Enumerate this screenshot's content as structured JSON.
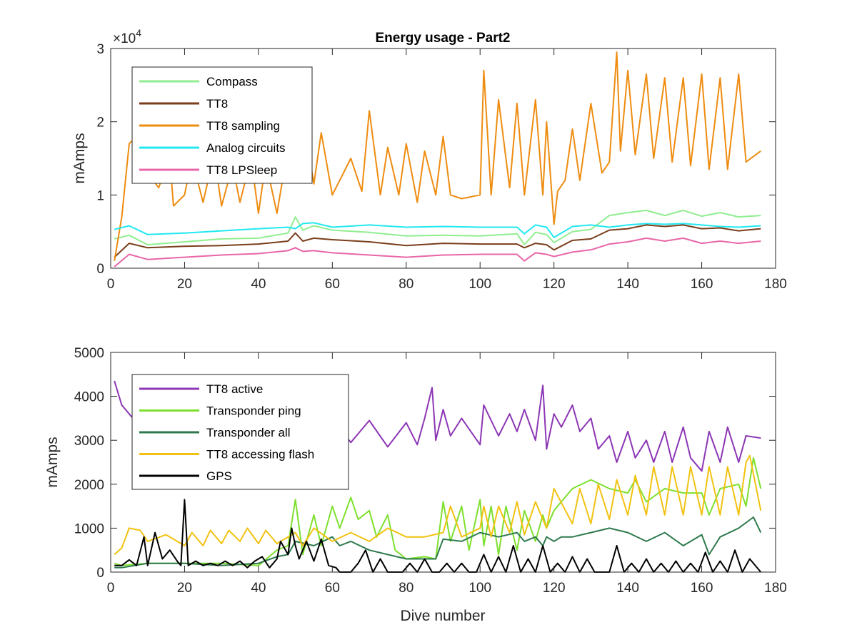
{
  "figure": {
    "title": "Energy usage - Part2"
  },
  "chart_data": [
    {
      "type": "line",
      "title": "Energy usage - Part2",
      "xlabel": "",
      "ylabel": "mAmps",
      "xlim": [
        0,
        180
      ],
      "ylim": [
        0,
        30000
      ],
      "x_ticks": [
        "0",
        "20",
        "40",
        "60",
        "80",
        "100",
        "120",
        "140",
        "160",
        "180"
      ],
      "y_ticks": [
        "0",
        "1",
        "2",
        "3"
      ],
      "y_exponent_label": "×10",
      "y_exponent_power": "4",
      "legend_position": "top-left",
      "grid": false,
      "series": [
        {
          "name": "Compass",
          "color": "#90EE90",
          "x": [
            1,
            5,
            10,
            20,
            30,
            40,
            48,
            50,
            52,
            55,
            60,
            70,
            80,
            90,
            100,
            110,
            112,
            115,
            118,
            120,
            125,
            130,
            135,
            140,
            145,
            150,
            155,
            160,
            165,
            170,
            176
          ],
          "y": [
            4000,
            4500,
            3200,
            3600,
            4000,
            4100,
            4800,
            7000,
            5200,
            5800,
            5200,
            4900,
            4400,
            4500,
            4400,
            4700,
            3200,
            4900,
            4600,
            3500,
            5000,
            5300,
            7200,
            7600,
            7900,
            7200,
            7900,
            7100,
            7600,
            7000,
            7200
          ]
        },
        {
          "name": "TT8",
          "color": "#7A3E1B",
          "x": [
            1,
            5,
            10,
            20,
            30,
            40,
            48,
            50,
            52,
            55,
            60,
            70,
            80,
            90,
            100,
            110,
            112,
            115,
            118,
            120,
            125,
            130,
            135,
            140,
            145,
            150,
            155,
            160,
            165,
            170,
            176
          ],
          "y": [
            1500,
            3400,
            2800,
            3000,
            3100,
            3300,
            3700,
            4800,
            3700,
            4100,
            3900,
            3600,
            3100,
            3400,
            3300,
            3300,
            2800,
            3400,
            3200,
            2500,
            3800,
            4000,
            5200,
            5400,
            5900,
            5700,
            5900,
            5400,
            5500,
            5100,
            5400
          ]
        },
        {
          "name": "TT8 sampling",
          "color": "#EE8C10",
          "x": [
            1,
            3,
            5,
            6,
            10,
            13,
            16,
            17,
            20,
            22,
            25,
            28,
            30,
            33,
            35,
            38,
            40,
            42,
            45,
            47,
            50,
            52,
            55,
            57,
            60,
            62,
            65,
            68,
            70,
            73,
            75,
            78,
            80,
            83,
            85,
            88,
            90,
            92,
            95,
            100,
            101,
            103,
            105,
            108,
            110,
            112,
            115,
            117,
            118,
            120,
            121,
            123,
            125,
            127,
            130,
            133,
            135,
            137,
            138,
            140,
            142,
            145,
            147,
            150,
            152,
            155,
            157,
            160,
            162,
            165,
            167,
            170,
            172,
            176
          ],
          "y": [
            1000,
            7000,
            17000,
            17500,
            13000,
            11000,
            15000,
            8500,
            10000,
            15000,
            9000,
            15500,
            8500,
            14000,
            9000,
            15000,
            7500,
            14500,
            7500,
            13500,
            12000,
            21000,
            11500,
            18500,
            10000,
            12000,
            15000,
            10500,
            21500,
            10000,
            16500,
            10000,
            17000,
            9000,
            16000,
            10000,
            18000,
            10000,
            9500,
            10000,
            27000,
            10000,
            23000,
            11000,
            22500,
            10000,
            23000,
            10000,
            20000,
            6000,
            10500,
            12000,
            19000,
            12000,
            22500,
            13000,
            14500,
            29500,
            16000,
            27000,
            15500,
            26500,
            15000,
            26000,
            14500,
            26000,
            14000,
            26500,
            13500,
            26000,
            13500,
            26500,
            14500,
            16000
          ]
        },
        {
          "name": "Analog circuits",
          "color": "#22E8F0",
          "x": [
            1,
            5,
            10,
            20,
            30,
            40,
            48,
            50,
            52,
            55,
            60,
            70,
            80,
            90,
            100,
            110,
            112,
            115,
            118,
            120,
            125,
            130,
            135,
            140,
            145,
            150,
            155,
            160,
            165,
            170,
            176
          ],
          "y": [
            5300,
            5800,
            4600,
            4800,
            5100,
            5400,
            5600,
            5400,
            6100,
            6200,
            5600,
            5900,
            5600,
            5700,
            5600,
            5600,
            4700,
            5900,
            5600,
            4200,
            5700,
            5900,
            5600,
            5900,
            6100,
            6000,
            6100,
            5900,
            5700,
            5600,
            5800
          ]
        },
        {
          "name": "TT8 LPSleep",
          "color": "#E866A8",
          "x": [
            1,
            5,
            10,
            20,
            30,
            40,
            48,
            50,
            52,
            55,
            60,
            70,
            80,
            90,
            100,
            110,
            112,
            115,
            118,
            120,
            125,
            130,
            135,
            140,
            145,
            150,
            155,
            160,
            165,
            170,
            176
          ],
          "y": [
            200,
            1900,
            1200,
            1500,
            1800,
            2000,
            2400,
            2800,
            2300,
            2400,
            2100,
            1800,
            1500,
            1800,
            1900,
            1900,
            1000,
            2100,
            1900,
            1600,
            2200,
            2500,
            3300,
            3600,
            4100,
            3700,
            4100,
            3400,
            3700,
            3400,
            3700
          ]
        }
      ]
    },
    {
      "type": "line",
      "title": "",
      "xlabel": "Dive number",
      "ylabel": "mAmps",
      "xlim": [
        0,
        180
      ],
      "ylim": [
        0,
        5000
      ],
      "x_ticks": [
        "0",
        "20",
        "40",
        "60",
        "80",
        "100",
        "120",
        "140",
        "160",
        "180"
      ],
      "y_ticks": [
        "0",
        "1000",
        "2000",
        "3000",
        "4000",
        "5000"
      ],
      "legend_position": "top-left",
      "grid": false,
      "series": [
        {
          "name": "TT8 active",
          "color": "#8C36B4",
          "x": [
            1,
            3,
            5,
            8,
            10,
            15,
            20,
            25,
            30,
            35,
            40,
            45,
            50,
            55,
            60,
            65,
            70,
            75,
            80,
            83,
            85,
            87,
            88,
            90,
            92,
            95,
            100,
            101,
            105,
            108,
            110,
            112,
            115,
            117,
            118,
            120,
            122,
            125,
            127,
            130,
            132,
            135,
            137,
            140,
            142,
            145,
            147,
            150,
            152,
            155,
            157,
            160,
            162,
            165,
            167,
            170,
            172,
            176
          ],
          "y": [
            4350,
            3800,
            3600,
            3300,
            3400,
            3200,
            3500,
            3100,
            3500,
            3000,
            3400,
            3100,
            3600,
            3200,
            3500,
            2950,
            3450,
            2850,
            3400,
            2900,
            3500,
            4200,
            3000,
            3700,
            3100,
            3500,
            2900,
            3800,
            3100,
            3600,
            3200,
            3700,
            3000,
            4250,
            2800,
            3600,
            3300,
            3800,
            3200,
            3500,
            2800,
            3100,
            2500,
            3200,
            2600,
            3000,
            2500,
            3200,
            2500,
            3300,
            2600,
            2300,
            3200,
            2500,
            3300,
            2500,
            3100,
            3050
          ]
        },
        {
          "name": "Transponder ping",
          "color": "#7EE02E",
          "x": [
            1,
            3,
            10,
            20,
            30,
            40,
            45,
            48,
            50,
            52,
            55,
            57,
            60,
            62,
            65,
            67,
            70,
            72,
            75,
            77,
            80,
            85,
            88,
            90,
            92,
            95,
            97,
            100,
            101,
            103,
            105,
            107,
            110,
            112,
            115,
            117,
            118,
            120,
            122,
            125,
            130,
            135,
            140,
            142,
            145,
            150,
            155,
            160,
            162,
            165,
            170,
            172,
            174,
            176
          ],
          "y": [
            200,
            150,
            200,
            200,
            200,
            150,
            500,
            600,
            1650,
            400,
            1300,
            600,
            1500,
            1000,
            1700,
            1200,
            1400,
            800,
            1300,
            500,
            300,
            350,
            300,
            1600,
            700,
            1500,
            500,
            1650,
            600,
            1500,
            400,
            1500,
            500,
            1400,
            700,
            1300,
            1000,
            1400,
            1600,
            1900,
            2100,
            1900,
            1800,
            2100,
            1600,
            1900,
            1800,
            1800,
            1300,
            1900,
            2000,
            1500,
            2600,
            1900
          ]
        },
        {
          "name": "Transponder all",
          "color": "#2E7A4E",
          "x": [
            1,
            3,
            10,
            20,
            30,
            40,
            45,
            48,
            50,
            55,
            60,
            62,
            65,
            70,
            75,
            80,
            85,
            88,
            90,
            95,
            100,
            105,
            110,
            112,
            115,
            117,
            118,
            120,
            122,
            125,
            130,
            135,
            140,
            145,
            150,
            155,
            160,
            162,
            165,
            170,
            174,
            176
          ],
          "y": [
            100,
            100,
            200,
            200,
            150,
            200,
            350,
            400,
            700,
            600,
            800,
            600,
            700,
            500,
            400,
            300,
            300,
            300,
            750,
            700,
            900,
            800,
            900,
            700,
            800,
            600,
            800,
            700,
            800,
            800,
            900,
            1000,
            900,
            700,
            900,
            600,
            850,
            400,
            800,
            1000,
            1250,
            900
          ]
        },
        {
          "name": "TT8 accessing flash",
          "color": "#F2C211",
          "x": [
            1,
            3,
            5,
            8,
            10,
            15,
            20,
            22,
            25,
            27,
            30,
            32,
            35,
            37,
            40,
            42,
            45,
            50,
            52,
            55,
            60,
            65,
            70,
            75,
            80,
            85,
            90,
            92,
            95,
            100,
            101,
            103,
            105,
            108,
            110,
            112,
            115,
            117,
            118,
            120,
            125,
            127,
            130,
            132,
            135,
            137,
            140,
            142,
            145,
            147,
            150,
            152,
            155,
            157,
            160,
            162,
            165,
            167,
            170,
            172,
            173,
            176
          ],
          "y": [
            400,
            550,
            1000,
            950,
            700,
            850,
            600,
            900,
            600,
            950,
            650,
            950,
            700,
            1000,
            650,
            950,
            650,
            900,
            600,
            1000,
            700,
            900,
            700,
            1000,
            800,
            800,
            900,
            1500,
            800,
            1000,
            1500,
            800,
            1500,
            900,
            1600,
            850,
            1600,
            1200,
            1000,
            1900,
            1100,
            1900,
            1100,
            2000,
            1200,
            2100,
            1300,
            2200,
            1300,
            2400,
            1300,
            2400,
            1300,
            2400,
            1300,
            2400,
            1300,
            2400,
            1300,
            2500,
            2650,
            1400
          ]
        },
        {
          "name": "GPS",
          "color": "#000000",
          "x": [
            1,
            3,
            5,
            7,
            9,
            10,
            12,
            14,
            16,
            18,
            19,
            20,
            21,
            23,
            25,
            27,
            29,
            31,
            33,
            35,
            37,
            39,
            41,
            43,
            45,
            46,
            48,
            49,
            50,
            51,
            53,
            55,
            57,
            59,
            61,
            62,
            65,
            67,
            69,
            71,
            73,
            75,
            77,
            79,
            81,
            83,
            85,
            87,
            89,
            91,
            93,
            95,
            97,
            99,
            101,
            103,
            105,
            107,
            109,
            111,
            113,
            115,
            117,
            119,
            121,
            123,
            125,
            127,
            129,
            131,
            133,
            135,
            137,
            139,
            141,
            143,
            145,
            147,
            149,
            151,
            153,
            155,
            157,
            159,
            161,
            163,
            165,
            167,
            169,
            171,
            173,
            176
          ],
          "y": [
            150,
            150,
            280,
            150,
            800,
            150,
            900,
            300,
            500,
            250,
            150,
            1650,
            150,
            250,
            150,
            200,
            150,
            250,
            150,
            250,
            100,
            250,
            350,
            100,
            300,
            700,
            400,
            1000,
            600,
            300,
            700,
            250,
            750,
            150,
            100,
            0,
            0,
            200,
            500,
            0,
            300,
            0,
            0,
            0,
            200,
            0,
            300,
            0,
            0,
            200,
            0,
            200,
            0,
            0,
            400,
            0,
            350,
            0,
            600,
            0,
            300,
            0,
            600,
            0,
            200,
            0,
            350,
            0,
            300,
            0,
            0,
            0,
            600,
            0,
            200,
            0,
            300,
            0,
            200,
            0,
            250,
            0,
            200,
            0,
            450,
            0,
            250,
            0,
            500,
            0,
            300,
            0
          ]
        }
      ]
    }
  ]
}
